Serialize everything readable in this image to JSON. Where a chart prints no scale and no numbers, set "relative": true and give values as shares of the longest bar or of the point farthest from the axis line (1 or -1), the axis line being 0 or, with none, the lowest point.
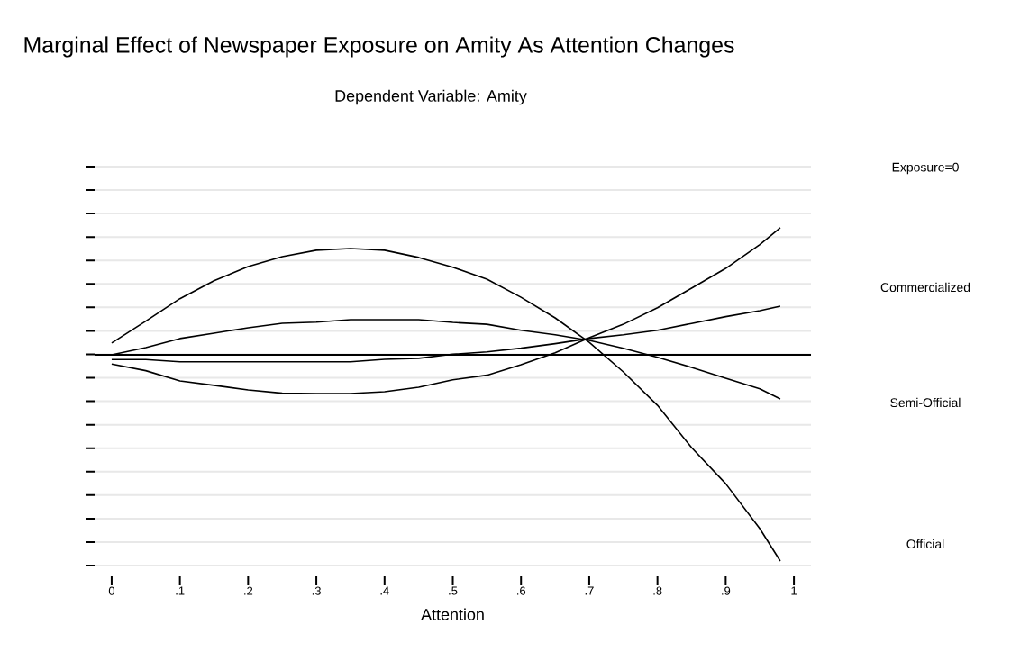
{
  "chart_data": {
    "type": "line",
    "title": "Marginal Effect of Newspaper Exposure on Amity As Attention Changes",
    "subtitle": "Dependent Variable: Amity",
    "xlabel": "Attention",
    "relative": true,
    "grid": "y",
    "tick_labels": "x",
    "marker": "none",
    "line_style": "solid",
    "xlim": [
      -0.025,
      1.025
    ],
    "xticks": [
      0,
      {
        "value": 0.1,
        "label": ".1"
      },
      {
        "value": 0.2,
        "label": ".2"
      },
      {
        "value": 0.3,
        "label": ".3"
      },
      {
        "value": 0.4,
        "label": ".4"
      },
      {
        "value": 0.5,
        "label": ".5"
      },
      {
        "value": 0.6,
        "label": ".6"
      },
      {
        "value": 0.7,
        "label": ".7"
      },
      {
        "value": 0.8,
        "label": ".8"
      },
      {
        "value": 0.9,
        "label": ".9"
      },
      1
    ],
    "x": [
      0,
      0.05,
      0.1,
      0.15,
      0.2,
      0.25,
      0.3,
      0.35,
      0.4,
      0.45,
      0.5,
      0.55,
      0.6,
      0.65,
      0.7,
      0.75,
      0.8,
      0.85,
      0.9,
      0.95,
      0.98
    ],
    "series": [
      {
        "color": "#000000",
        "values": [
          0.057,
          0.163,
          0.272,
          0.359,
          0.428,
          0.476,
          0.507,
          0.515,
          0.507,
          0.472,
          0.425,
          0.367,
          0.279,
          0.179,
          0.061,
          -0.083,
          -0.245,
          -0.45,
          -0.625,
          -0.843,
          -1.0
        ]
      },
      {
        "color": "#000000",
        "values": [
          0,
          0.035,
          0.079,
          0.105,
          0.131,
          0.153,
          0.158,
          0.17,
          0.17,
          0.17,
          0.157,
          0.148,
          0.119,
          0.097,
          0.07,
          0.032,
          -0.012,
          -0.061,
          -0.114,
          -0.165,
          -0.214
        ]
      },
      {
        "color": "#000000",
        "values": [
          -0.045,
          -0.077,
          -0.127,
          -0.148,
          -0.17,
          -0.186,
          -0.188,
          -0.188,
          -0.179,
          -0.157,
          -0.121,
          -0.099,
          -0.048,
          0.01,
          0.083,
          0.148,
          0.228,
          0.323,
          0.419,
          0.534,
          0.616
        ]
      },
      {
        "color": "#000000",
        "values": [
          -0.023,
          -0.023,
          -0.034,
          -0.034,
          -0.034,
          -0.034,
          -0.034,
          -0.034,
          -0.022,
          -0.017,
          0.003,
          0.014,
          0.032,
          0.054,
          0.079,
          0.097,
          0.119,
          0.152,
          0.185,
          0.214,
          0.236
        ]
      }
    ],
    "ref_lines": [
      {
        "axis": "y",
        "value": 0,
        "color": "#000000"
      }
    ],
    "annotations": [
      "Exposure=0",
      "Commercialized",
      "Semi-Official",
      "Official"
    ]
  }
}
